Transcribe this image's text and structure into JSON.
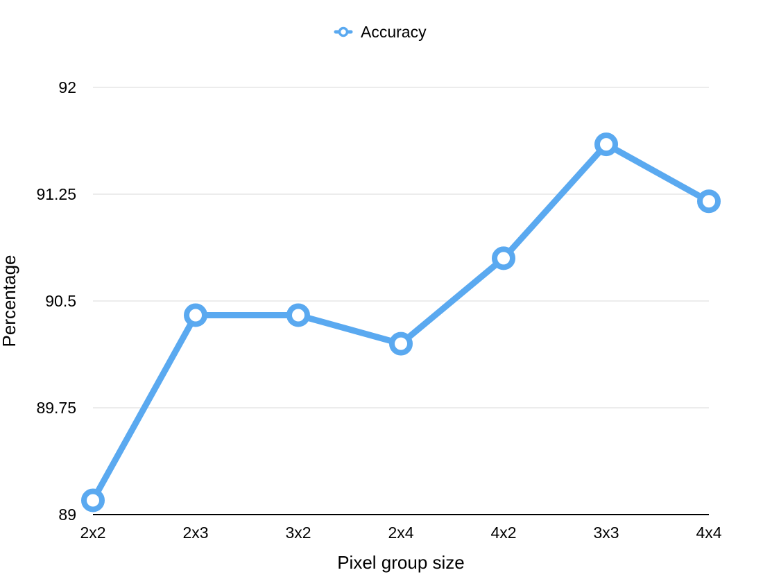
{
  "chart_data": {
    "type": "line",
    "title": "",
    "xlabel": "Pixel group size",
    "ylabel": "Percentage",
    "categories": [
      "2x2",
      "2x3",
      "3x2",
      "2x4",
      "4x2",
      "3x3",
      "4x4"
    ],
    "series": [
      {
        "name": "Accuracy",
        "values": [
          89.1,
          90.4,
          90.4,
          90.2,
          90.8,
          91.6,
          91.2
        ],
        "color": "#5aa9f0"
      }
    ],
    "ylim": [
      89,
      92
    ],
    "yticks": [
      "89",
      "89.75",
      "90.5",
      "91.25",
      "92"
    ],
    "grid": "horizontal",
    "legend_position": "top-center",
    "marker": "hollow-circle"
  }
}
